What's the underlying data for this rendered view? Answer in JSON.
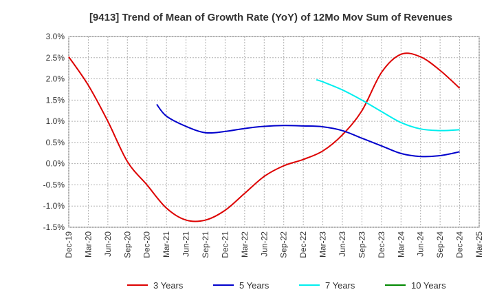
{
  "chart_data": {
    "type": "line",
    "title": "[9413]  Trend of Mean of Growth Rate (YoY) of 12Mo Mov Sum of Revenues",
    "xlabel": "",
    "ylabel": "",
    "ylim": [
      -1.5,
      3.0
    ],
    "y_ticks": [
      3.0,
      2.5,
      2.0,
      1.5,
      1.0,
      0.5,
      0.0,
      -0.5,
      -1.0,
      -1.5
    ],
    "y_tick_labels": [
      "3.0%",
      "2.5%",
      "2.0%",
      "1.5%",
      "1.0%",
      "0.5%",
      "0.0%",
      "-0.5%",
      "-1.0%",
      "-1.5%"
    ],
    "x_tick_labels": [
      "Dec-19",
      "Mar-20",
      "Jun-20",
      "Sep-20",
      "Dec-20",
      "Mar-21",
      "Jun-21",
      "Sep-21",
      "Dec-21",
      "Mar-22",
      "Jun-22",
      "Sep-22",
      "Dec-22",
      "Mar-23",
      "Jun-23",
      "Sep-23",
      "Dec-23",
      "Mar-24",
      "Jun-24",
      "Sep-24",
      "Dec-24",
      "Mar-25"
    ],
    "grid": true,
    "legend_position": "bottom",
    "series": [
      {
        "name": "3 Years",
        "color": "#dd0000",
        "points": [
          [
            0,
            2.52
          ],
          [
            1,
            1.85
          ],
          [
            2,
            1.0
          ],
          [
            3,
            0.05
          ],
          [
            4,
            -0.5
          ],
          [
            5,
            -1.05
          ],
          [
            6,
            -1.33
          ],
          [
            7,
            -1.33
          ],
          [
            8,
            -1.1
          ],
          [
            9,
            -0.7
          ],
          [
            10,
            -0.3
          ],
          [
            11,
            -0.05
          ],
          [
            12,
            0.1
          ],
          [
            13,
            0.3
          ],
          [
            14,
            0.68
          ],
          [
            15,
            1.25
          ],
          [
            16,
            2.15
          ],
          [
            17,
            2.58
          ],
          [
            18,
            2.52
          ],
          [
            19,
            2.2
          ],
          [
            20,
            1.78
          ]
        ]
      },
      {
        "name": "5 Years",
        "color": "#0000cc",
        "points": [
          [
            4.5,
            1.4
          ],
          [
            5,
            1.12
          ],
          [
            6,
            0.88
          ],
          [
            7,
            0.73
          ],
          [
            8,
            0.76
          ],
          [
            9,
            0.83
          ],
          [
            10,
            0.88
          ],
          [
            11,
            0.9
          ],
          [
            12,
            0.89
          ],
          [
            13,
            0.87
          ],
          [
            14,
            0.78
          ],
          [
            15,
            0.6
          ],
          [
            16,
            0.42
          ],
          [
            17,
            0.24
          ],
          [
            18,
            0.17
          ],
          [
            19,
            0.19
          ],
          [
            20,
            0.28
          ]
        ]
      },
      {
        "name": "7 Years",
        "color": "#00eeee",
        "points": [
          [
            12.67,
            1.98
          ],
          [
            13,
            1.93
          ],
          [
            14,
            1.74
          ],
          [
            15,
            1.5
          ],
          [
            16,
            1.23
          ],
          [
            17,
            0.97
          ],
          [
            18,
            0.82
          ],
          [
            19,
            0.78
          ],
          [
            20,
            0.8
          ]
        ]
      },
      {
        "name": "10 Years",
        "color": "#008800",
        "points": []
      }
    ]
  }
}
